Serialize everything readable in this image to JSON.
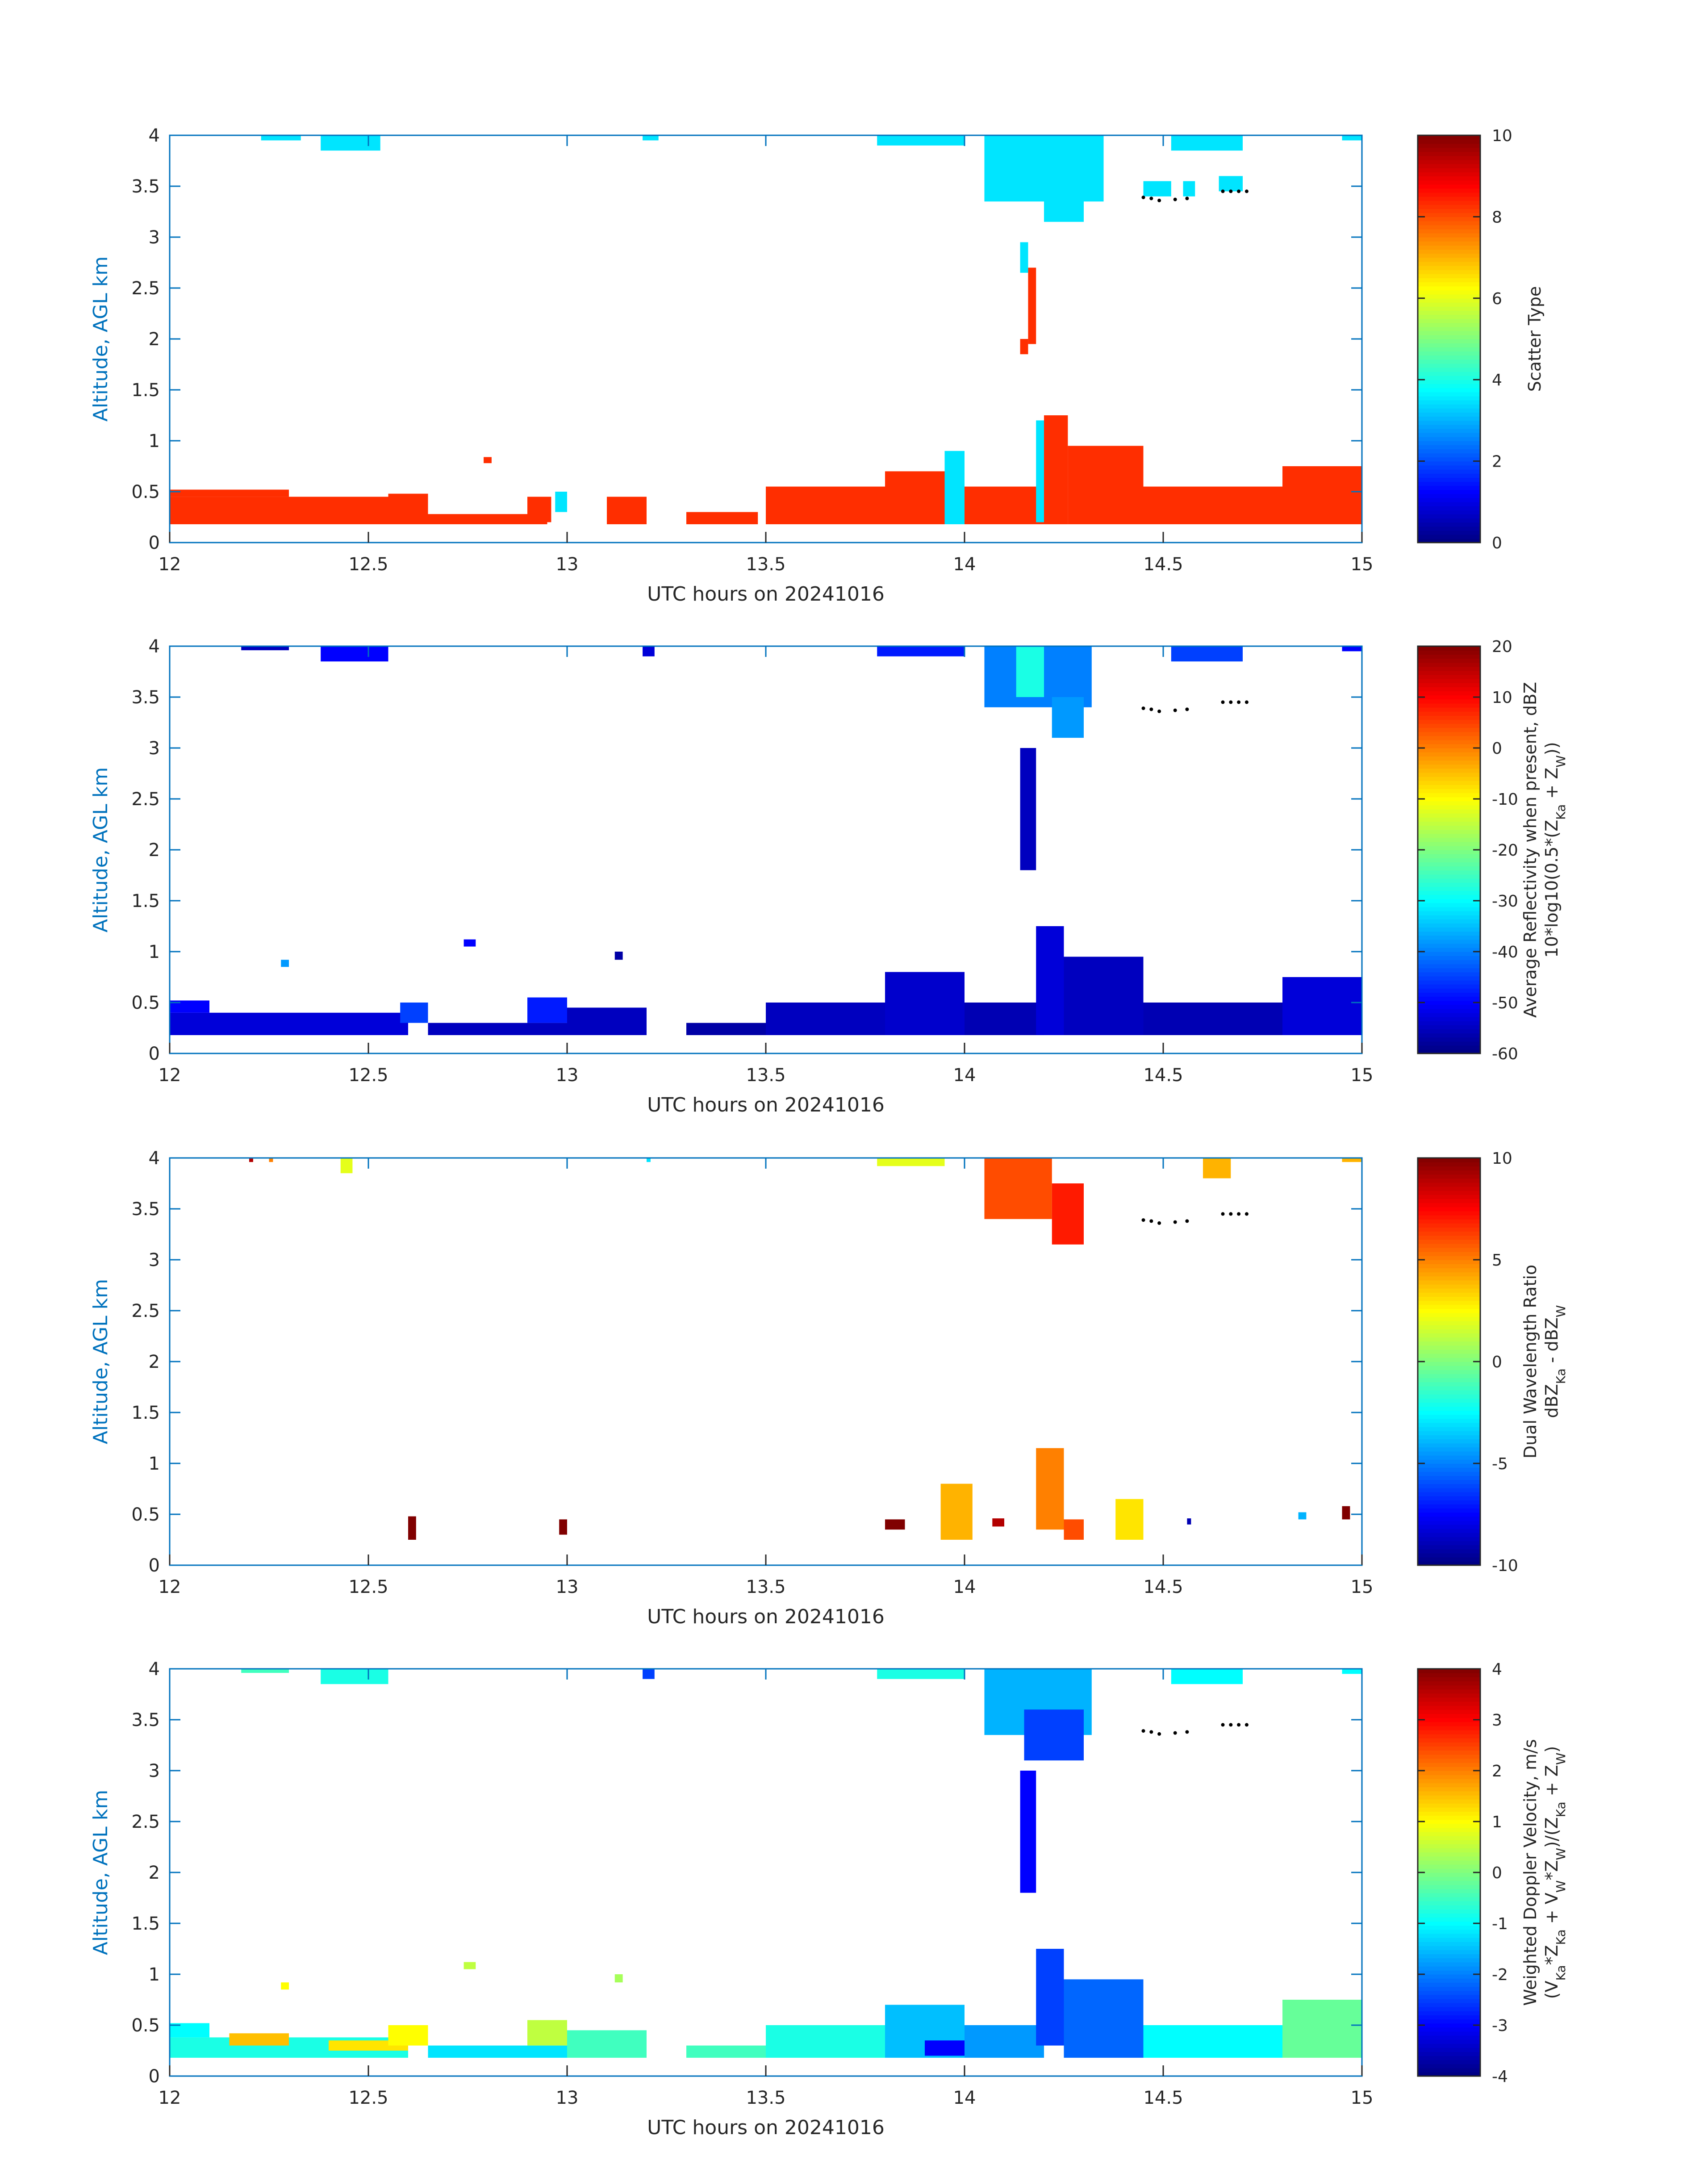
{
  "chart_data": [
    {
      "type": "heatmap",
      "ylabel": "Altitude, AGL km",
      "xlabel": "UTC hours on 20241016",
      "xlim": [
        12,
        15
      ],
      "ylim": [
        0,
        4
      ],
      "x_ticks": [
        "12",
        "12.5",
        "13",
        "13.5",
        "14",
        "14.5",
        "15"
      ],
      "y_ticks": [
        "0",
        "0.5",
        "1",
        "1.5",
        "2",
        "2.5",
        "3",
        "3.5",
        "4"
      ],
      "colorbar": {
        "label_lines": [
          "Scatter Type"
        ],
        "ticks": [
          "0",
          "2",
          "4",
          "6",
          "8",
          "10"
        ],
        "range": [
          0,
          10
        ]
      },
      "cells": [
        {
          "x0": 12.0,
          "x1": 12.55,
          "y0": 0.18,
          "y1": 0.45,
          "v": 8.3
        },
        {
          "x0": 12.0,
          "x1": 12.3,
          "y0": 0.45,
          "y1": 0.52,
          "v": 8.3
        },
        {
          "x0": 12.55,
          "x1": 12.65,
          "y0": 0.18,
          "y1": 0.48,
          "v": 8.3
        },
        {
          "x0": 12.65,
          "x1": 12.95,
          "y0": 0.18,
          "y1": 0.28,
          "v": 8.3
        },
        {
          "x0": 12.79,
          "x1": 12.81,
          "y0": 0.78,
          "y1": 0.84,
          "v": 8.3
        },
        {
          "x0": 12.97,
          "x1": 13.0,
          "y0": 0.3,
          "y1": 0.5,
          "v": 3.5
        },
        {
          "x0": 12.9,
          "x1": 12.96,
          "y0": 0.2,
          "y1": 0.45,
          "v": 8.3
        },
        {
          "x0": 13.1,
          "x1": 13.2,
          "y0": 0.18,
          "y1": 0.45,
          "v": 8.3
        },
        {
          "x0": 13.3,
          "x1": 13.48,
          "y0": 0.18,
          "y1": 0.3,
          "v": 8.3
        },
        {
          "x0": 13.5,
          "x1": 13.8,
          "y0": 0.18,
          "y1": 0.55,
          "v": 8.3
        },
        {
          "x0": 13.8,
          "x1": 13.95,
          "y0": 0.18,
          "y1": 0.7,
          "v": 8.3
        },
        {
          "x0": 13.95,
          "x1": 14.0,
          "y0": 0.18,
          "y1": 0.9,
          "v": 3.5
        },
        {
          "x0": 14.0,
          "x1": 14.2,
          "y0": 0.18,
          "y1": 0.55,
          "v": 8.3
        },
        {
          "x0": 14.18,
          "x1": 14.2,
          "y0": 0.2,
          "y1": 1.2,
          "v": 3.5
        },
        {
          "x0": 14.2,
          "x1": 14.26,
          "y0": 0.18,
          "y1": 1.25,
          "v": 8.3
        },
        {
          "x0": 14.26,
          "x1": 14.45,
          "y0": 0.18,
          "y1": 0.95,
          "v": 8.3
        },
        {
          "x0": 14.45,
          "x1": 14.8,
          "y0": 0.18,
          "y1": 0.55,
          "v": 8.3
        },
        {
          "x0": 14.8,
          "x1": 15.0,
          "y0": 0.18,
          "y1": 0.75,
          "v": 8.3
        },
        {
          "x0": 14.14,
          "x1": 14.16,
          "y0": 1.85,
          "y1": 2.0,
          "v": 8.3
        },
        {
          "x0": 14.16,
          "x1": 14.18,
          "y0": 1.95,
          "y1": 2.7,
          "v": 8.3
        },
        {
          "x0": 14.14,
          "x1": 14.16,
          "y0": 2.65,
          "y1": 2.95,
          "v": 3.5
        },
        {
          "x0": 12.38,
          "x1": 12.53,
          "y0": 3.85,
          "y1": 4.0,
          "v": 3.5
        },
        {
          "x0": 12.23,
          "x1": 12.33,
          "y0": 3.95,
          "y1": 4.0,
          "v": 3.5
        },
        {
          "x0": 13.19,
          "x1": 13.23,
          "y0": 3.95,
          "y1": 4.0,
          "v": 3.5
        },
        {
          "x0": 13.78,
          "x1": 14.0,
          "y0": 3.9,
          "y1": 4.0,
          "v": 3.5
        },
        {
          "x0": 14.05,
          "x1": 14.35,
          "y0": 3.35,
          "y1": 4.0,
          "v": 3.5
        },
        {
          "x0": 14.2,
          "x1": 14.3,
          "y0": 3.15,
          "y1": 3.4,
          "v": 3.5
        },
        {
          "x0": 14.45,
          "x1": 14.52,
          "y0": 3.4,
          "y1": 3.55,
          "v": 3.5
        },
        {
          "x0": 14.55,
          "x1": 14.58,
          "y0": 3.4,
          "y1": 3.55,
          "v": 3.5
        },
        {
          "x0": 14.64,
          "x1": 14.7,
          "y0": 3.45,
          "y1": 3.6,
          "v": 3.5
        },
        {
          "x0": 14.52,
          "x1": 14.7,
          "y0": 3.85,
          "y1": 4.0,
          "v": 3.5
        },
        {
          "x0": 14.95,
          "x1": 15.0,
          "y0": 3.95,
          "y1": 4.0,
          "v": 3.5
        }
      ]
    },
    {
      "type": "heatmap",
      "ylabel": "Altitude, AGL km",
      "xlabel": "UTC hours on 20241016",
      "xlim": [
        12,
        15
      ],
      "ylim": [
        0,
        4
      ],
      "x_ticks": [
        "12",
        "12.5",
        "13",
        "13.5",
        "14",
        "14.5",
        "15"
      ],
      "y_ticks": [
        "0",
        "0.5",
        "1",
        "1.5",
        "2",
        "2.5",
        "3",
        "3.5",
        "4"
      ],
      "colorbar": {
        "label_lines": [
          "Average Reflectivity when present, dBZ",
          "10*log10(0.5*(Z_Ka + Z_W))"
        ],
        "ticks": [
          "-60",
          "-50",
          "-40",
          "-30",
          "-20",
          "-10",
          "0",
          "10",
          "20"
        ],
        "range": [
          -60,
          20
        ]
      },
      "cells": [
        {
          "x0": 12.0,
          "x1": 12.6,
          "y0": 0.18,
          "y1": 0.4,
          "v": -53
        },
        {
          "x0": 12.0,
          "x1": 12.1,
          "y0": 0.4,
          "y1": 0.52,
          "v": -50
        },
        {
          "x0": 12.58,
          "x1": 12.65,
          "y0": 0.3,
          "y1": 0.5,
          "v": -45
        },
        {
          "x0": 12.65,
          "x1": 13.0,
          "y0": 0.18,
          "y1": 0.3,
          "v": -55
        },
        {
          "x0": 12.9,
          "x1": 13.0,
          "y0": 0.3,
          "y1": 0.55,
          "v": -48
        },
        {
          "x0": 13.0,
          "x1": 13.2,
          "y0": 0.18,
          "y1": 0.45,
          "v": -55
        },
        {
          "x0": 13.3,
          "x1": 13.5,
          "y0": 0.18,
          "y1": 0.3,
          "v": -57
        },
        {
          "x0": 13.5,
          "x1": 13.8,
          "y0": 0.18,
          "y1": 0.5,
          "v": -55
        },
        {
          "x0": 13.8,
          "x1": 14.0,
          "y0": 0.18,
          "y1": 0.8,
          "v": -54
        },
        {
          "x0": 14.0,
          "x1": 14.2,
          "y0": 0.18,
          "y1": 0.5,
          "v": -56
        },
        {
          "x0": 14.18,
          "x1": 14.25,
          "y0": 0.18,
          "y1": 1.25,
          "v": -53
        },
        {
          "x0": 14.25,
          "x1": 14.45,
          "y0": 0.18,
          "y1": 0.95,
          "v": -55
        },
        {
          "x0": 14.45,
          "x1": 14.8,
          "y0": 0.18,
          "y1": 0.5,
          "v": -56
        },
        {
          "x0": 14.8,
          "x1": 15.0,
          "y0": 0.18,
          "y1": 0.75,
          "v": -53
        },
        {
          "x0": 12.28,
          "x1": 12.3,
          "y0": 0.85,
          "y1": 0.92,
          "v": -38
        },
        {
          "x0": 12.74,
          "x1": 12.77,
          "y0": 1.05,
          "y1": 1.12,
          "v": -50
        },
        {
          "x0": 13.12,
          "x1": 13.14,
          "y0": 0.92,
          "y1": 1.0,
          "v": -57
        },
        {
          "x0": 14.14,
          "x1": 14.18,
          "y0": 1.8,
          "y1": 3.0,
          "v": -55
        },
        {
          "x0": 12.38,
          "x1": 12.55,
          "y0": 3.85,
          "y1": 4.0,
          "v": -50
        },
        {
          "x0": 12.18,
          "x1": 12.3,
          "y0": 3.96,
          "y1": 4.0,
          "v": -55
        },
        {
          "x0": 13.19,
          "x1": 13.22,
          "y0": 3.9,
          "y1": 4.0,
          "v": -53
        },
        {
          "x0": 13.78,
          "x1": 14.0,
          "y0": 3.9,
          "y1": 4.0,
          "v": -48
        },
        {
          "x0": 14.05,
          "x1": 14.32,
          "y0": 3.4,
          "y1": 4.0,
          "v": -40
        },
        {
          "x0": 14.13,
          "x1": 14.2,
          "y0": 3.5,
          "y1": 4.0,
          "v": -28
        },
        {
          "x0": 14.22,
          "x1": 14.3,
          "y0": 3.1,
          "y1": 3.5,
          "v": -38
        },
        {
          "x0": 14.52,
          "x1": 14.7,
          "y0": 3.85,
          "y1": 4.0,
          "v": -45
        },
        {
          "x0": 14.95,
          "x1": 15.0,
          "y0": 3.95,
          "y1": 4.0,
          "v": -50
        }
      ]
    },
    {
      "type": "heatmap",
      "ylabel": "Altitude, AGL km",
      "xlabel": "UTC hours on 20241016",
      "xlim": [
        12,
        15
      ],
      "ylim": [
        0,
        4
      ],
      "x_ticks": [
        "12",
        "12.5",
        "13",
        "13.5",
        "14",
        "14.5",
        "15"
      ],
      "y_ticks": [
        "0",
        "0.5",
        "1",
        "1.5",
        "2",
        "2.5",
        "3",
        "3.5",
        "4"
      ],
      "colorbar": {
        "label_lines": [
          "Dual Wavelength Ratio",
          "dBZ_Ka - dBZ_W"
        ],
        "ticks": [
          "-10",
          "-5",
          "0",
          "5",
          "10"
        ],
        "range": [
          -10,
          10
        ]
      },
      "cells": [
        {
          "x0": 12.2,
          "x1": 12.21,
          "y0": 3.96,
          "y1": 4.0,
          "v": 9
        },
        {
          "x0": 12.25,
          "x1": 12.26,
          "y0": 3.96,
          "y1": 4.0,
          "v": 5
        },
        {
          "x0": 12.43,
          "x1": 12.46,
          "y0": 3.85,
          "y1": 4.0,
          "v": 2
        },
        {
          "x0": 13.2,
          "x1": 13.21,
          "y0": 3.96,
          "y1": 4.0,
          "v": -3
        },
        {
          "x0": 13.78,
          "x1": 13.95,
          "y0": 3.92,
          "y1": 4.0,
          "v": 2
        },
        {
          "x0": 14.05,
          "x1": 14.22,
          "y0": 3.4,
          "y1": 4.0,
          "v": 6
        },
        {
          "x0": 14.22,
          "x1": 14.3,
          "y0": 3.15,
          "y1": 3.75,
          "v": 7
        },
        {
          "x0": 14.6,
          "x1": 14.67,
          "y0": 3.8,
          "y1": 4.0,
          "v": 4
        },
        {
          "x0": 14.95,
          "x1": 15.0,
          "y0": 3.96,
          "y1": 4.0,
          "v": 4
        },
        {
          "x0": 12.6,
          "x1": 12.62,
          "y0": 0.25,
          "y1": 0.48,
          "v": 10
        },
        {
          "x0": 12.98,
          "x1": 13.0,
          "y0": 0.3,
          "y1": 0.45,
          "v": 10
        },
        {
          "x0": 13.8,
          "x1": 13.85,
          "y0": 0.35,
          "y1": 0.45,
          "v": 10
        },
        {
          "x0": 13.94,
          "x1": 14.02,
          "y0": 0.25,
          "y1": 0.8,
          "v": 4
        },
        {
          "x0": 14.07,
          "x1": 14.1,
          "y0": 0.38,
          "y1": 0.46,
          "v": 9
        },
        {
          "x0": 14.18,
          "x1": 14.25,
          "y0": 0.35,
          "y1": 1.15,
          "v": 5
        },
        {
          "x0": 14.25,
          "x1": 14.3,
          "y0": 0.25,
          "y1": 0.45,
          "v": 6
        },
        {
          "x0": 14.38,
          "x1": 14.45,
          "y0": 0.25,
          "y1": 0.65,
          "v": 3
        },
        {
          "x0": 14.56,
          "x1": 14.57,
          "y0": 0.4,
          "y1": 0.46,
          "v": -9
        },
        {
          "x0": 14.84,
          "x1": 14.86,
          "y0": 0.45,
          "y1": 0.52,
          "v": -4
        },
        {
          "x0": 14.95,
          "x1": 14.97,
          "y0": 0.45,
          "y1": 0.58,
          "v": 10
        }
      ]
    },
    {
      "type": "heatmap",
      "ylabel": "Altitude, AGL km",
      "xlabel": "UTC hours on 20241016",
      "xlim": [
        12,
        15
      ],
      "ylim": [
        0,
        4
      ],
      "x_ticks": [
        "12",
        "12.5",
        "13",
        "13.5",
        "14",
        "14.5",
        "15"
      ],
      "y_ticks": [
        "0",
        "0.5",
        "1",
        "1.5",
        "2",
        "2.5",
        "3",
        "3.5",
        "4"
      ],
      "colorbar": {
        "label_lines": [
          "Weighted Doppler Velocity, m/s",
          "(V_Ka*Z_Ka + V_W*Z_W)/(Z_Ka + Z_W)"
        ],
        "ticks": [
          "-4",
          "-3",
          "-2",
          "-1",
          "0",
          "1",
          "2",
          "3",
          "4"
        ],
        "range": [
          -4,
          4
        ]
      },
      "cells": [
        {
          "x0": 12.0,
          "x1": 12.6,
          "y0": 0.18,
          "y1": 0.38,
          "v": -0.8
        },
        {
          "x0": 12.15,
          "x1": 12.3,
          "y0": 0.3,
          "y1": 0.42,
          "v": 1.5
        },
        {
          "x0": 12.4,
          "x1": 12.6,
          "y0": 0.25,
          "y1": 0.35,
          "v": 1.2
        },
        {
          "x0": 12.0,
          "x1": 12.1,
          "y0": 0.38,
          "y1": 0.52,
          "v": -1.0
        },
        {
          "x0": 12.55,
          "x1": 12.65,
          "y0": 0.3,
          "y1": 0.5,
          "v": 1.0
        },
        {
          "x0": 12.65,
          "x1": 13.0,
          "y0": 0.18,
          "y1": 0.3,
          "v": -1.2
        },
        {
          "x0": 12.9,
          "x1": 13.0,
          "y0": 0.3,
          "y1": 0.55,
          "v": 0.5
        },
        {
          "x0": 13.0,
          "x1": 13.2,
          "y0": 0.18,
          "y1": 0.45,
          "v": -0.5
        },
        {
          "x0": 13.3,
          "x1": 13.5,
          "y0": 0.18,
          "y1": 0.3,
          "v": -0.5
        },
        {
          "x0": 13.5,
          "x1": 13.8,
          "y0": 0.18,
          "y1": 0.5,
          "v": -0.8
        },
        {
          "x0": 13.8,
          "x1": 14.0,
          "y0": 0.18,
          "y1": 0.7,
          "v": -1.5
        },
        {
          "x0": 13.9,
          "x1": 14.05,
          "y0": 0.2,
          "y1": 0.35,
          "v": -3.0
        },
        {
          "x0": 14.0,
          "x1": 14.2,
          "y0": 0.18,
          "y1": 0.5,
          "v": -1.8
        },
        {
          "x0": 14.18,
          "x1": 14.25,
          "y0": 0.3,
          "y1": 1.25,
          "v": -2.5
        },
        {
          "x0": 14.25,
          "x1": 14.45,
          "y0": 0.18,
          "y1": 0.95,
          "v": -2.2
        },
        {
          "x0": 14.45,
          "x1": 14.8,
          "y0": 0.18,
          "y1": 0.5,
          "v": -1.0
        },
        {
          "x0": 14.8,
          "x1": 15.0,
          "y0": 0.18,
          "y1": 0.75,
          "v": -0.2
        },
        {
          "x0": 12.28,
          "x1": 12.3,
          "y0": 0.85,
          "y1": 0.92,
          "v": 1.0
        },
        {
          "x0": 12.74,
          "x1": 12.77,
          "y0": 1.05,
          "y1": 1.12,
          "v": 0.5
        },
        {
          "x0": 13.12,
          "x1": 13.14,
          "y0": 0.92,
          "y1": 1.0,
          "v": 0.3
        },
        {
          "x0": 14.14,
          "x1": 14.18,
          "y0": 1.8,
          "y1": 3.0,
          "v": -3.0
        },
        {
          "x0": 12.38,
          "x1": 12.55,
          "y0": 3.85,
          "y1": 4.0,
          "v": -0.8
        },
        {
          "x0": 12.18,
          "x1": 12.3,
          "y0": 3.96,
          "y1": 4.0,
          "v": -0.5
        },
        {
          "x0": 13.19,
          "x1": 13.22,
          "y0": 3.9,
          "y1": 4.0,
          "v": -2.5
        },
        {
          "x0": 13.78,
          "x1": 14.0,
          "y0": 3.9,
          "y1": 4.0,
          "v": -0.8
        },
        {
          "x0": 14.05,
          "x1": 14.32,
          "y0": 3.35,
          "y1": 4.0,
          "v": -1.6
        },
        {
          "x0": 14.15,
          "x1": 14.3,
          "y0": 3.1,
          "y1": 3.6,
          "v": -2.5
        },
        {
          "x0": 14.52,
          "x1": 14.7,
          "y0": 3.85,
          "y1": 4.0,
          "v": -1.0
        },
        {
          "x0": 14.95,
          "x1": 15.0,
          "y0": 3.95,
          "y1": 4.0,
          "v": -1.0
        }
      ]
    }
  ]
}
